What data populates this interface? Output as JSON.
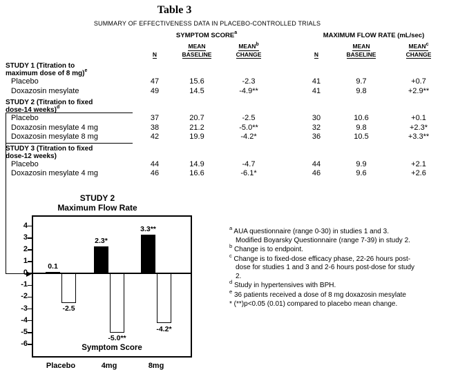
{
  "doc": {
    "title": "Table 3",
    "subtitle": "SUMMARY OF EFFECTIVENESS DATA IN PLACEBO-CONTROLLED TRIALS"
  },
  "table": {
    "header": {
      "symptom_group": {
        "label": "SYMPTOM SCORE",
        "sup": "a"
      },
      "flow_group": {
        "label": "MAXIMUM FLOW RATE (mL/sec)"
      },
      "n": "N",
      "mean": "MEAN",
      "baseline": "BASELINE",
      "change": "CHANGE",
      "symptom_change_sup": "b",
      "flow_change_sup": "c"
    },
    "rows": [
      {
        "type": "section",
        "label": "STUDY 1 (Titration to maximum dose of 8 mg)",
        "sup": "e"
      },
      {
        "type": "data",
        "label": "Placebo",
        "cells": [
          "47",
          "15.6",
          "-2.3",
          "41",
          "9.7",
          "+0.7"
        ]
      },
      {
        "type": "data",
        "label": "Doxazosin mesylate",
        "cells": [
          "49",
          "14.5",
          "-4.9**",
          "41",
          "9.8",
          "+2.9**"
        ]
      },
      {
        "type": "section",
        "label": "STUDY 2 (Titration to fixed dose-14 weeks)",
        "sup": "d"
      },
      {
        "type": "data",
        "label": "Placebo",
        "bracket": true,
        "cells": [
          "37",
          "20.7",
          "-2.5",
          "30",
          "10.6",
          "+0.1"
        ]
      },
      {
        "type": "data",
        "label": "Doxazosin mesylate 4 mg",
        "bracket": true,
        "cells": [
          "38",
          "21.2",
          "-5.0**",
          "32",
          "9.8",
          "+2.3*"
        ]
      },
      {
        "type": "data",
        "label": "Doxazosin mesylate 8 mg",
        "bracket": true,
        "cells": [
          "42",
          "19.9",
          "-4.2*",
          "36",
          "10.5",
          "+3.3**"
        ]
      },
      {
        "type": "section",
        "label": "STUDY 3 (Titration to fixed dose-12 weeks)"
      },
      {
        "type": "data",
        "label": "Placebo",
        "cells": [
          "44",
          "14.9",
          "-4.7",
          "44",
          "9.9",
          "+2.1"
        ]
      },
      {
        "type": "data",
        "label": "Doxazosin mesylate 4 mg",
        "cells": [
          "46",
          "16.6",
          "-6.1*",
          "46",
          "9.6",
          "+2.6"
        ]
      }
    ]
  },
  "chart_data": {
    "type": "bar",
    "title": "STUDY 2",
    "subtitle": "Maximum Flow Rate",
    "inner_label": "Symptom Score",
    "categories": [
      "Placebo",
      "4mg",
      "8mg"
    ],
    "series": [
      {
        "name": "Maximum Flow Rate",
        "style": "filled",
        "values": [
          0.1,
          2.3,
          3.3
        ],
        "labels": [
          "0.1",
          "2.3*",
          "3.3**"
        ]
      },
      {
        "name": "Symptom Score",
        "style": "open",
        "values": [
          -2.5,
          -5.0,
          -4.2
        ],
        "labels": [
          "-2.5",
          "-5.0**",
          "-4.2*"
        ]
      }
    ],
    "ylim": [
      -6,
      4
    ],
    "yticks": [
      4,
      3,
      2,
      1,
      0,
      -1,
      -2,
      -3,
      -4,
      -5,
      -6
    ],
    "legend": "none",
    "grid": false
  },
  "footnotes": [
    {
      "marker": "a",
      "superscript": true,
      "text": "AUA questionnaire (range 0-30) in studies 1 and 3. Modified Boyarsky Questionnaire (range 7-39) in study 2."
    },
    {
      "marker": "b",
      "superscript": true,
      "text": "Change is to endpoint."
    },
    {
      "marker": "c",
      "superscript": true,
      "text": "Change is to fixed-dose efficacy phase, 22-26 hours post-dose for studies 1 and 3 and 2-6 hours post-dose for study 2."
    },
    {
      "marker": "d",
      "superscript": true,
      "text": "Study in hypertensives with BPH."
    },
    {
      "marker": "e",
      "superscript": true,
      "text": "36 patients received a dose of 8 mg doxazosin mesylate"
    },
    {
      "marker": "*",
      "superscript": false,
      "text": "(**)p<0.05 (0.01) compared to placebo mean change."
    }
  ]
}
